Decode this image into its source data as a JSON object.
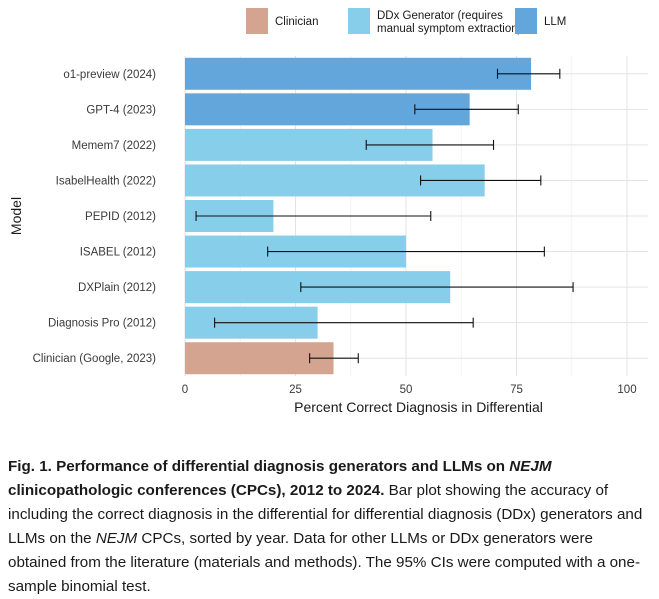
{
  "legend": {
    "items": [
      {
        "label_lines": [
          "Clinician"
        ],
        "color": "#d4a491"
      },
      {
        "label_lines": [
          "DDx Generator (requires",
          "manual symptom extraction)"
        ],
        "color": "#87ceeb"
      },
      {
        "label_lines": [
          "LLM"
        ],
        "color": "#62a6dc"
      }
    ]
  },
  "chart_data": {
    "type": "bar",
    "orientation": "horizontal",
    "xlabel": "Percent Correct Diagnosis in Differential",
    "ylabel": "Model",
    "xlim": [
      0,
      100
    ],
    "xticks": [
      0,
      25,
      50,
      75,
      100
    ],
    "grid": true,
    "legend_position": "top",
    "categories": [
      "o1-preview (2024)",
      "GPT-4 (2023)",
      "Memem7 (2022)",
      "IsabelHealth (2022)",
      "PEPID (2012)",
      "ISABEL (2012)",
      "DXPlain (2012)",
      "Diagnosis Pro (2012)",
      "Clinician (Google, 2023)"
    ],
    "groups": [
      "LLM",
      "LLM",
      "DDx Generator (requires manual symptom extraction)",
      "DDx Generator (requires manual symptom extraction)",
      "DDx Generator (requires manual symptom extraction)",
      "DDx Generator (requires manual symptom extraction)",
      "DDx Generator (requires manual symptom extraction)",
      "DDx Generator (requires manual symptom extraction)",
      "Clinician"
    ],
    "values": [
      78.3,
      64.4,
      56.0,
      67.8,
      20.0,
      50.0,
      60.0,
      30.0,
      33.6
    ],
    "ci_low": [
      70.7,
      52.0,
      41.0,
      53.3,
      2.5,
      18.7,
      26.2,
      6.7,
      28.2
    ],
    "ci_high": [
      84.8,
      75.4,
      69.8,
      80.5,
      55.6,
      81.3,
      87.8,
      65.2,
      39.2
    ]
  },
  "caption": {
    "bold_a": "Fig. 1. Performance of differential diagnosis generators and LLMs on ",
    "bold_i": "NEJM",
    "bold_b": " clinicopathologic conferences (CPCs), 2012 to 2024.",
    "text_a": " Bar plot showing the accuracy of including the correct diagnosis in the differential for differential diagnosis (DDx) generators and LLMs on the ",
    "text_i": "NEJM",
    "text_b": " CPCs, sorted by year. Data for other LLMs or DDx generators were obtained from the literature (materials and methods). The 95% CIs were computed with a one-sample binomial test."
  }
}
